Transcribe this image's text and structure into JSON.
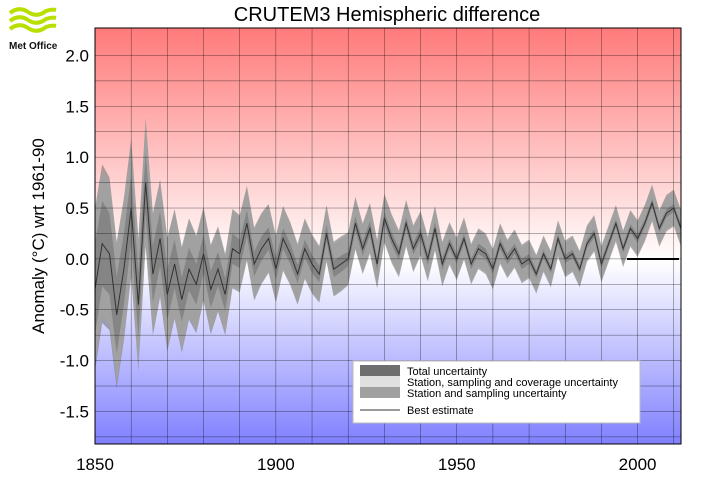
{
  "logo": {
    "text": "Met Office",
    "icon": "met-office-wave-icon"
  },
  "chart_data": {
    "type": "area",
    "title": "CRUTEM3 Hemispheric difference",
    "ylabel": "Anomaly (°C) wrt 1961-90",
    "xlabel": "",
    "xlim": [
      1850,
      2012
    ],
    "ylim": [
      -1.82,
      2.27
    ],
    "x_ticks": [
      1850,
      1900,
      1950,
      2000
    ],
    "y_ticks": [
      {
        "v": 2.0,
        "label": "2.0"
      },
      {
        "v": 1.5,
        "label": "1.5"
      },
      {
        "v": 1.0,
        "label": "1.0"
      },
      {
        "v": 0.5,
        "label": "0.5"
      },
      {
        "v": 0.0,
        "label": "0.0"
      },
      {
        "v": -0.5,
        "label": "-0.5"
      },
      {
        "v": -1.0,
        "label": "-1.0"
      },
      {
        "v": -1.5,
        "label": "-1.5"
      }
    ],
    "grid": true,
    "background": {
      "top_color": "#ff7a7a",
      "mid_color": "#ffffff",
      "bottom_color": "#8080ff"
    },
    "legend": {
      "position": "bottom-right",
      "entries": [
        {
          "label": "Total uncertainty",
          "color": "#6e6e6e",
          "kind": "box"
        },
        {
          "label": "Station, sampling and coverage uncertainty",
          "color": "#e0e0e0",
          "kind": "box"
        },
        {
          "label": "Station and sampling uncertainty",
          "color": "#a0a0a0",
          "kind": "box"
        },
        {
          "label": "Best estimate",
          "color": "#333333",
          "kind": "line"
        }
      ]
    },
    "series": [
      {
        "name": "Best estimate",
        "x": [
          1850,
          1852,
          1854,
          1856,
          1858,
          1860,
          1862,
          1864,
          1866,
          1868,
          1870,
          1872,
          1874,
          1876,
          1878,
          1880,
          1882,
          1884,
          1886,
          1888,
          1890,
          1892,
          1894,
          1896,
          1898,
          1900,
          1902,
          1904,
          1906,
          1908,
          1910,
          1912,
          1914,
          1916,
          1918,
          1920,
          1922,
          1924,
          1926,
          1928,
          1930,
          1932,
          1934,
          1936,
          1938,
          1940,
          1942,
          1944,
          1946,
          1948,
          1950,
          1952,
          1954,
          1956,
          1958,
          1960,
          1962,
          1964,
          1966,
          1968,
          1970,
          1972,
          1974,
          1976,
          1978,
          1980,
          1982,
          1984,
          1986,
          1988,
          1990,
          1992,
          1994,
          1996,
          1998,
          2000,
          2002,
          2004,
          2006,
          2008,
          2010,
          2012
        ],
        "y": [
          -0.3,
          0.15,
          0.05,
          -0.55,
          -0.1,
          0.5,
          -0.45,
          0.75,
          -0.15,
          0.2,
          -0.35,
          -0.05,
          -0.4,
          -0.1,
          -0.25,
          0.05,
          -0.3,
          -0.1,
          -0.35,
          0.1,
          0.05,
          0.35,
          -0.05,
          0.1,
          0.2,
          -0.1,
          0.2,
          0.05,
          -0.15,
          0.1,
          -0.05,
          -0.15,
          0.25,
          -0.1,
          -0.05,
          0.0,
          0.35,
          0.1,
          0.3,
          -0.05,
          0.4,
          0.2,
          0.05,
          0.35,
          0.1,
          0.25,
          0.0,
          0.3,
          -0.05,
          0.15,
          0.0,
          0.2,
          -0.05,
          0.1,
          0.05,
          -0.1,
          0.15,
          0.0,
          0.1,
          -0.05,
          0.0,
          -0.15,
          0.05,
          -0.1,
          0.2,
          0.0,
          0.05,
          -0.1,
          0.15,
          0.25,
          -0.05,
          0.15,
          0.35,
          0.1,
          0.3,
          0.2,
          0.35,
          0.55,
          0.3,
          0.45,
          0.5,
          0.3
        ],
        "station_sampling_uncertainty": [
          0.45,
          0.42,
          0.4,
          0.38,
          0.35,
          0.33,
          0.32,
          0.3,
          0.28,
          0.27,
          0.25,
          0.24,
          0.22,
          0.21,
          0.2,
          0.19,
          0.18,
          0.17,
          0.16,
          0.15,
          0.14,
          0.13,
          0.12,
          0.12,
          0.11,
          0.11,
          0.1,
          0.1,
          0.09,
          0.09,
          0.09,
          0.08,
          0.08,
          0.08,
          0.08,
          0.07,
          0.07,
          0.07,
          0.07,
          0.06,
          0.06,
          0.06,
          0.06,
          0.06,
          0.06,
          0.06,
          0.06,
          0.06,
          0.06,
          0.05,
          0.05,
          0.05,
          0.05,
          0.05,
          0.05,
          0.05,
          0.05,
          0.05,
          0.05,
          0.05,
          0.05,
          0.04,
          0.04,
          0.04,
          0.04,
          0.04,
          0.04,
          0.04,
          0.04,
          0.04,
          0.04,
          0.04,
          0.04,
          0.04,
          0.04,
          0.04,
          0.04,
          0.04,
          0.04,
          0.04,
          0.04,
          0.04
        ],
        "coverage_uncertainty": [
          0.75,
          0.72,
          0.7,
          0.68,
          0.66,
          0.64,
          0.62,
          0.6,
          0.58,
          0.56,
          0.54,
          0.52,
          0.5,
          0.48,
          0.46,
          0.44,
          0.42,
          0.4,
          0.38,
          0.37,
          0.36,
          0.35,
          0.34,
          0.33,
          0.32,
          0.31,
          0.3,
          0.29,
          0.28,
          0.28,
          0.27,
          0.26,
          0.26,
          0.25,
          0.25,
          0.24,
          0.24,
          0.23,
          0.23,
          0.22,
          0.22,
          0.22,
          0.21,
          0.21,
          0.21,
          0.2,
          0.2,
          0.2,
          0.2,
          0.19,
          0.19,
          0.19,
          0.18,
          0.18,
          0.18,
          0.18,
          0.18,
          0.17,
          0.17,
          0.17,
          0.17,
          0.17,
          0.16,
          0.16,
          0.16,
          0.16,
          0.16,
          0.16,
          0.16,
          0.16,
          0.16,
          0.16,
          0.16,
          0.16,
          0.16,
          0.16,
          0.16,
          0.16,
          0.16,
          0.16,
          0.16,
          0.16
        ],
        "total_uncertainty": [
          0.8,
          0.78,
          0.75,
          0.72,
          0.7,
          0.68,
          0.65,
          0.63,
          0.6,
          0.58,
          0.56,
          0.54,
          0.52,
          0.5,
          0.48,
          0.46,
          0.44,
          0.42,
          0.4,
          0.39,
          0.38,
          0.37,
          0.36,
          0.35,
          0.34,
          0.33,
          0.32,
          0.31,
          0.3,
          0.3,
          0.29,
          0.28,
          0.28,
          0.27,
          0.27,
          0.26,
          0.26,
          0.25,
          0.25,
          0.24,
          0.24,
          0.24,
          0.23,
          0.23,
          0.23,
          0.22,
          0.22,
          0.22,
          0.22,
          0.21,
          0.21,
          0.21,
          0.2,
          0.2,
          0.2,
          0.2,
          0.2,
          0.19,
          0.19,
          0.19,
          0.19,
          0.19,
          0.18,
          0.18,
          0.18,
          0.18,
          0.18,
          0.18,
          0.18,
          0.18,
          0.18,
          0.18,
          0.18,
          0.18,
          0.18,
          0.18,
          0.18,
          0.18,
          0.18,
          0.18,
          0.18,
          0.18
        ]
      }
    ]
  }
}
